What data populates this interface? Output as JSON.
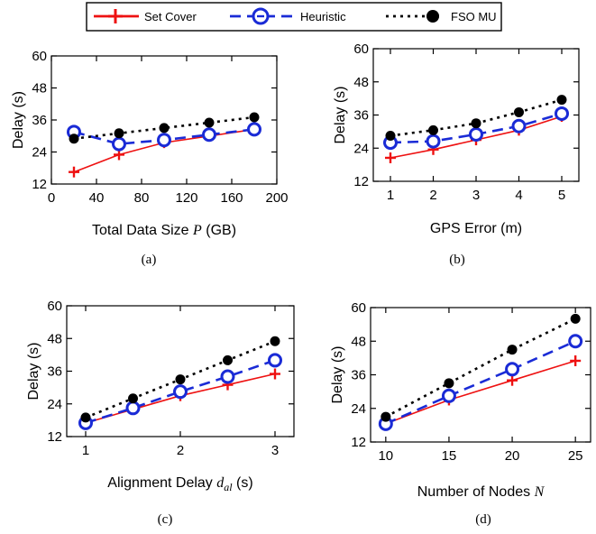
{
  "legend": {
    "position": "top",
    "entries": [
      {
        "label": "Set Cover",
        "color": "#ee1111",
        "marker": "plus",
        "dash": "solid"
      },
      {
        "label": "Heuristic",
        "color": "#1a2bd6",
        "marker": "circle-open",
        "dash": "dashed"
      },
      {
        "label": "FSO MU",
        "color": "#000000",
        "marker": "dot",
        "dash": "dotted"
      }
    ]
  },
  "chart_data": [
    {
      "type": "line",
      "caption": "(a)",
      "xlabel_prefix": "Total Data Size ",
      "xlabel_symbol": "P",
      "xlabel_sub": "",
      "xlabel_suffix": " (GB)",
      "ylabel": "Delay (s)",
      "xlim": [
        0,
        200
      ],
      "ylim": [
        12,
        60
      ],
      "xticks": [
        0,
        40,
        80,
        120,
        160,
        200
      ],
      "yticks": [
        12,
        24,
        36,
        48,
        60
      ],
      "x": [
        20,
        60,
        100,
        140,
        180
      ],
      "series": [
        {
          "name": "Set Cover",
          "values": [
            16.5,
            23,
            27.5,
            30,
            32.5
          ]
        },
        {
          "name": "Heuristic",
          "values": [
            31.5,
            27,
            28.5,
            30.5,
            32.5
          ]
        },
        {
          "name": "FSO MU",
          "values": [
            29,
            31,
            33,
            35,
            37
          ]
        }
      ]
    },
    {
      "type": "line",
      "caption": "(b)",
      "xlabel_prefix": "GPS Error (m)",
      "xlabel_symbol": "",
      "xlabel_sub": "",
      "xlabel_suffix": "",
      "ylabel": "Delay (s)",
      "xlim": [
        0.6,
        5.4
      ],
      "ylim": [
        12,
        60
      ],
      "xticks": [
        1,
        2,
        3,
        4,
        5
      ],
      "yticks": [
        12,
        24,
        36,
        48,
        60
      ],
      "x": [
        1,
        2,
        3,
        4,
        5
      ],
      "series": [
        {
          "name": "Set Cover",
          "values": [
            20.5,
            23.5,
            27,
            30.5,
            35.5
          ]
        },
        {
          "name": "Heuristic",
          "values": [
            26,
            26.5,
            29,
            32,
            36.5
          ]
        },
        {
          "name": "FSO MU",
          "values": [
            28.5,
            30.5,
            33,
            37,
            41.5
          ]
        }
      ]
    },
    {
      "type": "line",
      "caption": "(c)",
      "xlabel_prefix": "Alignment Delay ",
      "xlabel_symbol": "d",
      "xlabel_sub": "al",
      "xlabel_suffix": " (s)",
      "ylabel": "Delay (s)",
      "xlim": [
        0.8,
        3.2
      ],
      "ylim": [
        12,
        60
      ],
      "xticks": [
        1,
        2,
        3
      ],
      "yticks": [
        12,
        24,
        36,
        48,
        60
      ],
      "x": [
        1,
        1.5,
        2,
        2.5,
        3
      ],
      "series": [
        {
          "name": "Set Cover",
          "values": [
            17,
            22,
            27,
            31,
            35
          ]
        },
        {
          "name": "Heuristic",
          "values": [
            17,
            22.5,
            28.5,
            34,
            40
          ]
        },
        {
          "name": "FSO MU",
          "values": [
            19,
            26,
            33,
            40,
            47
          ]
        }
      ]
    },
    {
      "type": "line",
      "caption": "(d)",
      "xlabel_prefix": "Number of Nodes ",
      "xlabel_symbol": "N",
      "xlabel_sub": "",
      "xlabel_suffix": "",
      "ylabel": "Delay (s)",
      "xlim": [
        8.8,
        26.2
      ],
      "ylim": [
        12,
        60
      ],
      "xticks": [
        10,
        15,
        20,
        25
      ],
      "yticks": [
        12,
        24,
        36,
        48,
        60
      ],
      "x": [
        10,
        15,
        20,
        25
      ],
      "series": [
        {
          "name": "Set Cover",
          "values": [
            18.5,
            27,
            34,
            41
          ]
        },
        {
          "name": "Heuristic",
          "values": [
            18.5,
            28.5,
            38,
            48
          ]
        },
        {
          "name": "FSO MU",
          "values": [
            21,
            33,
            45,
            56
          ]
        }
      ]
    }
  ]
}
